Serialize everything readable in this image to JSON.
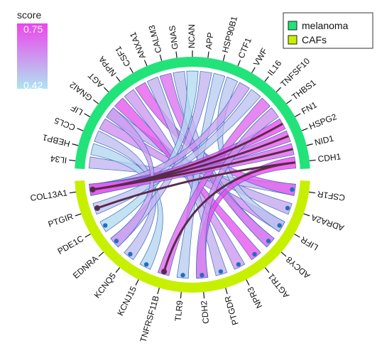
{
  "legend_score": {
    "title": "score",
    "max_label": "0.75",
    "min_label": "0.42",
    "color_high": "#ee44ee",
    "color_low": "#aee4f0"
  },
  "legend_groups": [
    {
      "label": "melanoma",
      "color": "#22e37a"
    },
    {
      "label": "CAFs",
      "color": "#c7f000"
    }
  ],
  "sectors": {
    "melanoma": {
      "color": "#22e37a",
      "genes": [
        "IL34",
        "HEBP1",
        "CCL5",
        "LIF",
        "GNAI2",
        "AGT",
        "NPPA",
        "CSF1",
        "ANXA1",
        "CALM3",
        "GNAS",
        "NCAN",
        "APP",
        "HSP90B1",
        "CTF1",
        "VWF",
        "IL16",
        "TNFSF10",
        "THBS1",
        "FN1",
        "HSPG2",
        "NID1",
        "CDH1"
      ]
    },
    "CAFs": {
      "color": "#c7f000",
      "genes": [
        "CSF1R",
        "ADRA2A",
        "LIFR",
        "ADCY8",
        "AGTR1",
        "NPR3",
        "PTGDR",
        "CDH2",
        "TLR9",
        "TNFRSF11B",
        "KCNJ15",
        "KCNQ5",
        "EDNRA",
        "PDE1C",
        "PTGIR",
        "COL13A1"
      ]
    }
  },
  "chart_data": {
    "type": "chord",
    "score_range": [
      0.42,
      0.75
    ],
    "links": [
      {
        "ligand": "IL34",
        "receptor": "CSF1R",
        "score": 0.52
      },
      {
        "ligand": "CSF1",
        "receptor": "CSF1R",
        "score": 0.7
      },
      {
        "ligand": "GNAI2",
        "receptor": "ADRA2A",
        "score": 0.55
      },
      {
        "ligand": "LIF",
        "receptor": "LIFR",
        "score": 0.6
      },
      {
        "ligand": "CTF1",
        "receptor": "LIFR",
        "score": 0.48
      },
      {
        "ligand": "GNAS",
        "receptor": "ADCY8",
        "score": 0.5
      },
      {
        "ligand": "CALM3",
        "receptor": "ADCY8",
        "score": 0.66
      },
      {
        "ligand": "AGT",
        "receptor": "AGTR1",
        "score": 0.72
      },
      {
        "ligand": "NPPA",
        "receptor": "NPR3",
        "score": 0.58
      },
      {
        "ligand": "ANXA1",
        "receptor": "PTGDR",
        "score": 0.53
      },
      {
        "ligand": "CDH1",
        "receptor": "CDH2",
        "score": 0.75
      },
      {
        "ligand": "HSP90B1",
        "receptor": "TLR9",
        "score": 0.47
      },
      {
        "ligand": "TNFSF10",
        "receptor": "TNFRSF11B",
        "score": 0.68
      },
      {
        "ligand": "HEBP1",
        "receptor": "KCNJ15",
        "score": 0.45
      },
      {
        "ligand": "CCL5",
        "receptor": "KCNQ5",
        "score": 0.5
      },
      {
        "ligand": "APP",
        "receptor": "EDNRA",
        "score": 0.52
      },
      {
        "ligand": "NCAN",
        "receptor": "PDE1C",
        "score": 0.44
      },
      {
        "ligand": "IL16",
        "receptor": "PTGIR",
        "score": 0.49
      },
      {
        "ligand": "VWF",
        "receptor": "COL13A1",
        "score": 0.56
      },
      {
        "ligand": "FN1",
        "receptor": "COL13A1",
        "score": 0.74
      },
      {
        "ligand": "HSPG2",
        "receptor": "COL13A1",
        "score": 0.71
      },
      {
        "ligand": "NID1",
        "receptor": "COL13A1",
        "score": 0.69
      },
      {
        "ligand": "THBS1",
        "receptor": "CDH2",
        "score": 0.6
      },
      {
        "ligand": "GNAI2",
        "receptor": "EDNRA",
        "score": 0.57
      }
    ],
    "highlighted": [
      {
        "ligand": "NID1",
        "receptor": "COL13A1"
      },
      {
        "ligand": "HSPG2",
        "receptor": "COL13A1"
      },
      {
        "ligand": "FN1",
        "receptor": "COL13A1"
      },
      {
        "ligand": "CDH1",
        "receptor": "TNFRSF11B"
      },
      {
        "ligand": "CDH1",
        "receptor": "PTGIR"
      }
    ]
  }
}
